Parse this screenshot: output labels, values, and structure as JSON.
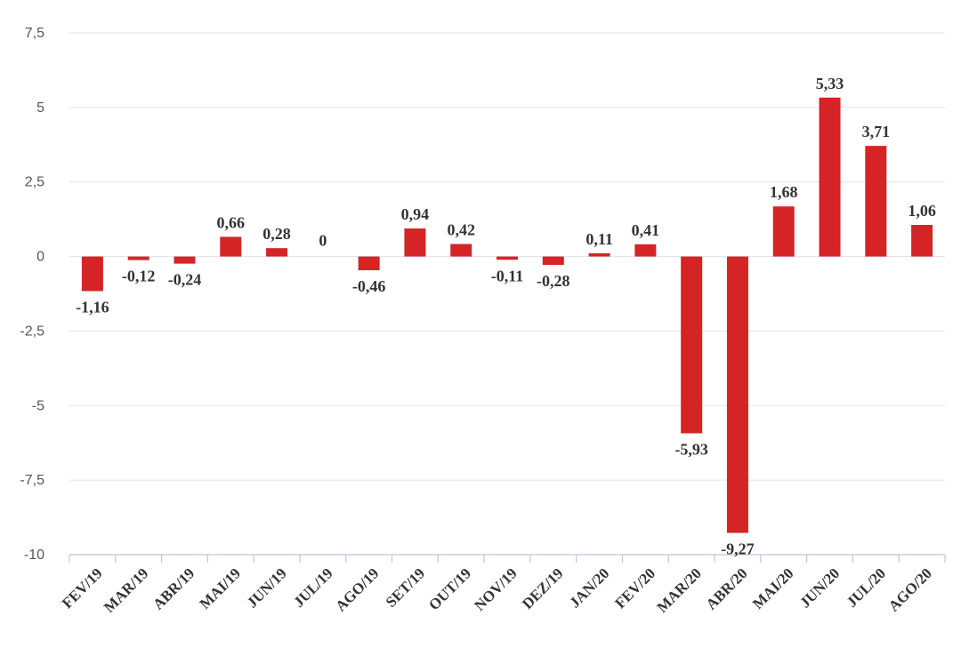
{
  "chart_data": {
    "type": "bar",
    "categories": [
      "FEV/19",
      "MAR/19",
      "ABR/19",
      "MAI/19",
      "JUN/19",
      "JUL/19",
      "AGO/19",
      "SET/19",
      "OUT/19",
      "NOV/19",
      "DEZ/19",
      "JAN/20",
      "FEV/20",
      "MAR/20",
      "ABR/20",
      "MAI/20",
      "JUN/20",
      "JUL/20",
      "AGO/20"
    ],
    "values": [
      -1.16,
      -0.12,
      -0.24,
      0.66,
      0.28,
      0,
      -0.46,
      0.94,
      0.42,
      -0.11,
      -0.28,
      0.11,
      0.41,
      -5.93,
      -9.27,
      1.68,
      5.33,
      3.71,
      1.06
    ],
    "value_labels": [
      "-1,16",
      "-0,12",
      "-0,24",
      "0,66",
      "0,28",
      "0",
      "-0,46",
      "0,94",
      "0,42",
      "-0,11",
      "-0,28",
      "0,11",
      "0,41",
      "-5,93",
      "-9,27",
      "1,68",
      "5,33",
      "3,71",
      "1,06"
    ],
    "ylim": [
      -10,
      7.5
    ],
    "yticks": [
      7.5,
      5,
      2.5,
      0,
      -2.5,
      -5,
      -7.5,
      -10
    ],
    "ytick_labels": [
      "7,5",
      "5",
      "2,5",
      "0",
      "-2,5",
      "-5",
      "-7,5",
      "-10"
    ],
    "bar_color": "#d42426",
    "grid": true,
    "legend": "none"
  }
}
